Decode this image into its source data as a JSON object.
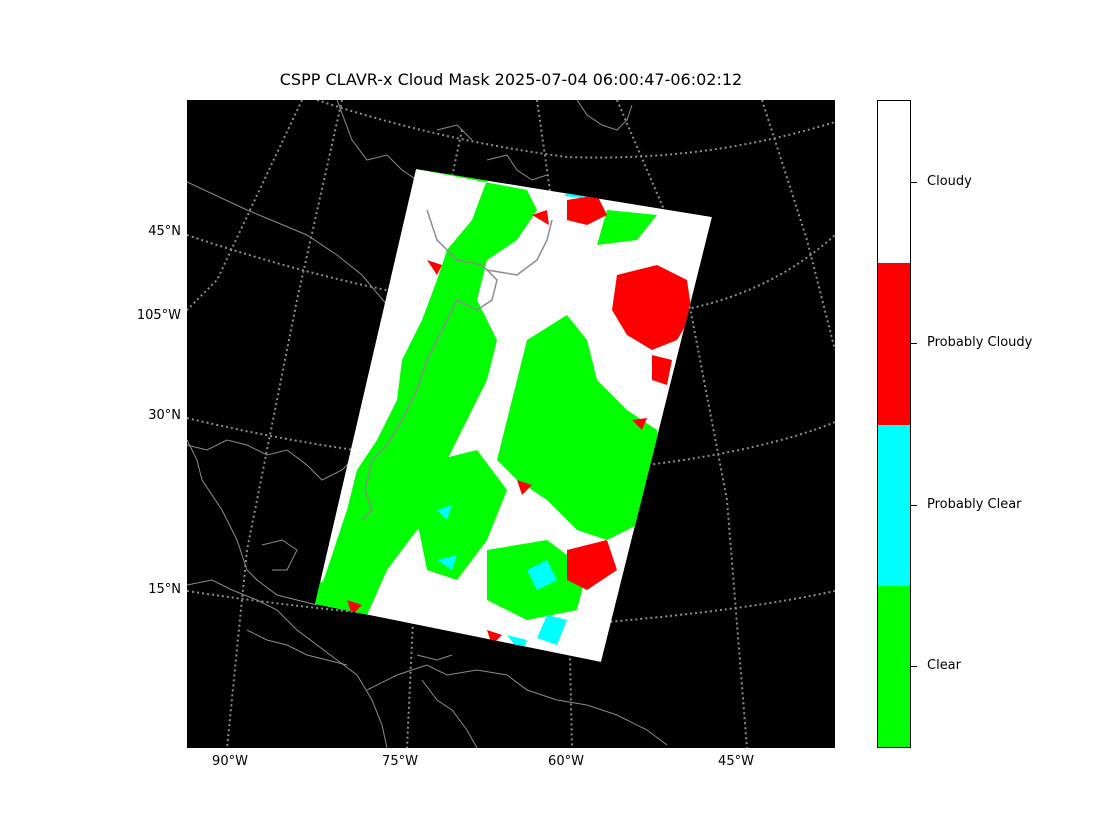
{
  "title": "CSPP CLAVR-x Cloud Mask 2025-07-04 06:00:47-06:02:12",
  "map": {
    "lat_labels": [
      "45°N",
      "105°W",
      "30°N",
      "15°N"
    ],
    "lon_labels": [
      "90°W",
      "75°W",
      "60°W",
      "45°W"
    ],
    "background_color": "#000000",
    "gridline_color": "#8c8c8c",
    "coastline_color": "#8c8c8c"
  },
  "colorbar": {
    "categories": [
      {
        "label": "Cloudy",
        "color": "#ffffff"
      },
      {
        "label": "Probably Cloudy",
        "color": "#ff0000"
      },
      {
        "label": "Probably Clear",
        "color": "#00ffff"
      },
      {
        "label": "Clear",
        "color": "#00ff00"
      }
    ]
  }
}
